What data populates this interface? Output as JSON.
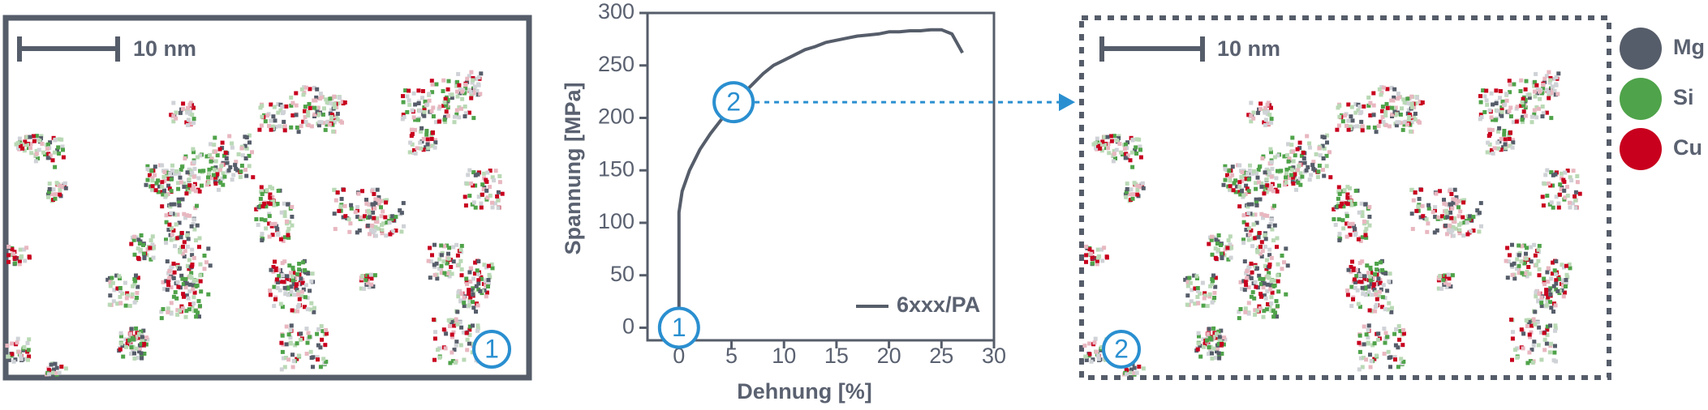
{
  "left_panel": {
    "scale_label": "10 nm",
    "marker": "1"
  },
  "right_panel": {
    "scale_label": "10 nm",
    "marker": "2"
  },
  "elements": [
    {
      "name": "Mg",
      "color": "#565d6a"
    },
    {
      "name": "Si",
      "color": "#4fa34a"
    },
    {
      "name": "Cu",
      "color": "#c8001e"
    }
  ],
  "chart_data": {
    "type": "line",
    "xlabel": "Dehnung [%]",
    "ylabel": "Spannung [MPa]",
    "xlim": [
      -3,
      30
    ],
    "ylim": [
      -12,
      300
    ],
    "xticks": [
      0,
      5,
      10,
      15,
      20,
      25,
      30
    ],
    "yticks": [
      0,
      50,
      100,
      150,
      200,
      250,
      300
    ],
    "legend": "bottom-right",
    "series": [
      {
        "name": "6xxx/PA",
        "color": "#565d6a",
        "x": [
          0,
          0,
          0.3,
          1,
          2,
          3,
          4,
          5.2,
          6,
          7,
          8,
          9,
          10,
          11,
          12,
          13,
          14,
          15,
          16,
          17,
          18,
          19,
          20,
          21,
          22,
          23,
          24,
          25,
          26,
          27
        ],
        "values": [
          0,
          110,
          130,
          150,
          170,
          185,
          198,
          212,
          222,
          232,
          242,
          250,
          255,
          260,
          265,
          268,
          272,
          274,
          276,
          278,
          279,
          280,
          282,
          282,
          283,
          283,
          284,
          284,
          280,
          262
        ]
      }
    ],
    "annotations": [
      {
        "label": "1",
        "x": 0,
        "y": 0
      },
      {
        "label": "2",
        "x": 5.2,
        "y": 215
      }
    ]
  }
}
